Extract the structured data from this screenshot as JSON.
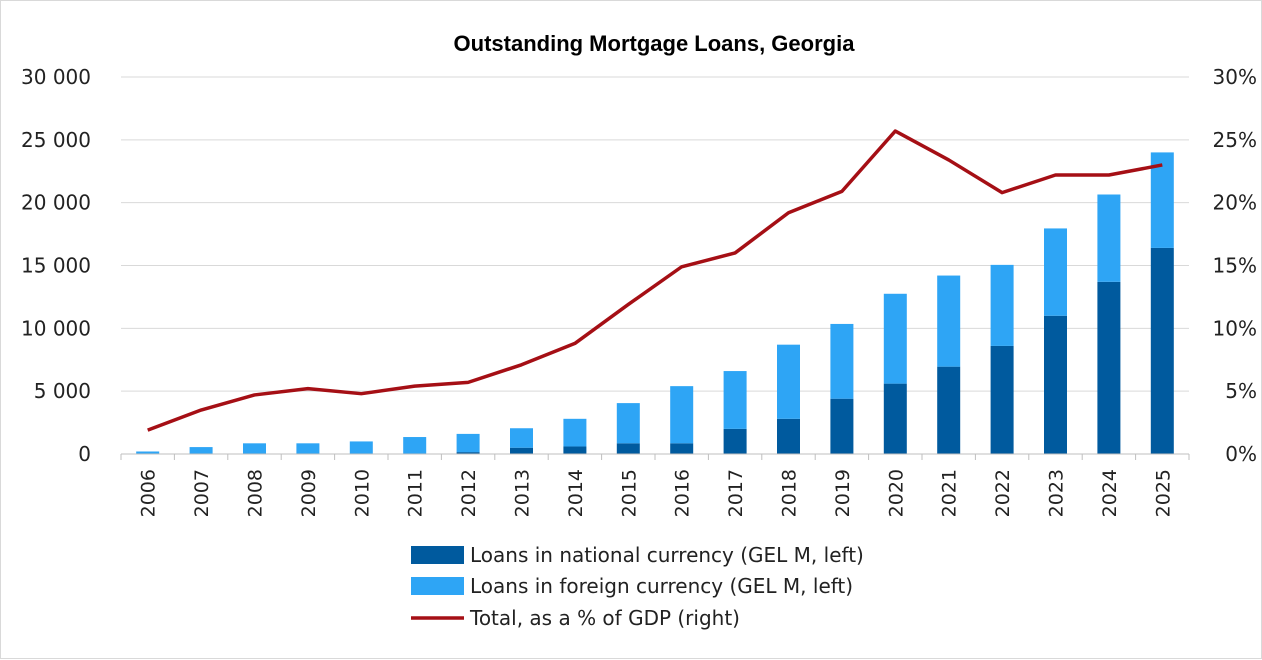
{
  "chart_data": {
    "type": "bar",
    "title": "Outstanding Mortgage Loans, Georgia",
    "categories": [
      "2006",
      "2007",
      "2008",
      "2009",
      "2010",
      "2011",
      "2012",
      "2013",
      "2014",
      "2015",
      "2016",
      "2017",
      "2018",
      "2019",
      "2020",
      "2021",
      "2022",
      "2023",
      "2024",
      "2025"
    ],
    "left_axis": {
      "ticks": [
        "0",
        "5 000",
        "10 000",
        "15 000",
        "20 000",
        "25 000",
        "30 000"
      ],
      "ylim": [
        0,
        30000
      ]
    },
    "right_axis": {
      "ticks": [
        "0%",
        "5%",
        "10%",
        "15%",
        "20%",
        "25%",
        "30%"
      ],
      "ylim": [
        0,
        30
      ]
    },
    "series": [
      {
        "name": "Loans in national currency (GEL M, left)",
        "kind": "stacked-bar",
        "axis": "left",
        "color": "#005a9e",
        "values": [
          0,
          0,
          0,
          0,
          0,
          0,
          150,
          500,
          600,
          850,
          850,
          2000,
          2800,
          4400,
          5600,
          6950,
          8600,
          11000,
          13700,
          16400
        ]
      },
      {
        "name": "Loans in foreign currency (GEL M, left)",
        "kind": "stacked-bar",
        "axis": "left",
        "color": "#2ea5f5",
        "values": [
          200,
          550,
          850,
          850,
          1000,
          1350,
          1450,
          1550,
          2200,
          3200,
          4550,
          4600,
          5900,
          5950,
          7150,
          7250,
          6450,
          6950,
          6950,
          7600
        ]
      },
      {
        "name": "Total, as a % of GDP (right)",
        "kind": "line",
        "axis": "right",
        "color": "#a50f15",
        "values": [
          1.9,
          3.5,
          4.7,
          5.2,
          4.8,
          5.4,
          5.7,
          7.1,
          8.8,
          11.9,
          14.9,
          16.0,
          19.2,
          20.9,
          25.7,
          23.4,
          20.8,
          22.2,
          22.2,
          23.0
        ]
      }
    ],
    "grid": "horizontal",
    "legend_position": "bottom"
  }
}
